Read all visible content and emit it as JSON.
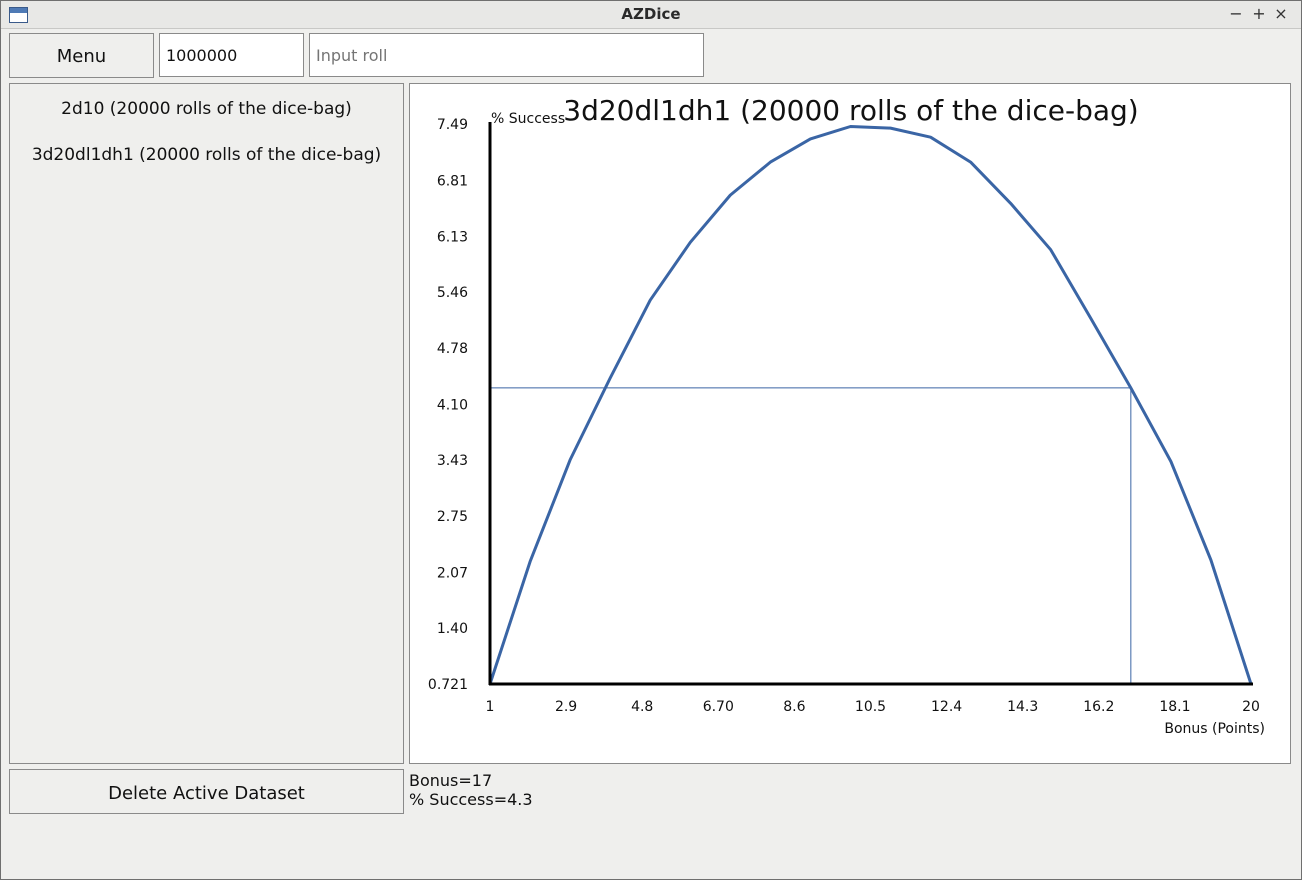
{
  "window": {
    "title": "AZDice",
    "controls": {
      "minimize": "−",
      "maximize": "+",
      "close": "×"
    }
  },
  "toolbar": {
    "menu_label": "Menu",
    "roll_count_value": "1000000",
    "roll_input_placeholder": "Input roll"
  },
  "datasets": [
    {
      "label": "2d10 (20000 rolls of the dice-bag)"
    },
    {
      "label": "3d20dl1dh1 (20000 rolls of the dice-bag)"
    }
  ],
  "actions": {
    "delete_label": "Delete Active Dataset"
  },
  "readout": {
    "bonus": "Bonus=17",
    "success": "% Success=4.3"
  },
  "chart_data": {
    "type": "line",
    "title": "3d20dl1dh1 (20000 rolls of the dice-bag)",
    "xlabel": "Bonus (Points)",
    "ylabel": "% Success",
    "xlim": [
      1,
      20
    ],
    "ylim": [
      0.721,
      7.49
    ],
    "x_ticks": [
      1,
      2.9,
      4.8,
      6.7,
      8.6,
      10.5,
      12.4,
      14.3,
      16.2,
      18.1,
      20
    ],
    "x_tick_labels": [
      "1",
      "2.9",
      "4.8",
      "6.70",
      "8.6",
      "10.5",
      "12.4",
      "14.3",
      "16.2",
      "18.1",
      "20"
    ],
    "y_ticks": [
      0.721,
      1.4,
      2.07,
      2.75,
      3.43,
      4.1,
      4.78,
      5.46,
      6.13,
      6.81,
      7.49
    ],
    "y_tick_labels": [
      "0.721",
      "1.40",
      "2.07",
      "2.75",
      "3.43",
      "4.10",
      "4.78",
      "5.46",
      "6.13",
      "6.81",
      "7.49"
    ],
    "grid": false,
    "line_color": "#3a65a5",
    "crosshair": {
      "x": 17,
      "y": 4.3,
      "color": "#3a65a5"
    },
    "series": [
      {
        "x": [
          1,
          2,
          3,
          4,
          5,
          6,
          7,
          8,
          9,
          10,
          11,
          12,
          13,
          14,
          15,
          16,
          17,
          18,
          19,
          20
        ],
        "values": [
          0.721,
          2.2,
          3.43,
          4.42,
          5.36,
          6.06,
          6.63,
          7.03,
          7.31,
          7.46,
          7.44,
          7.33,
          7.03,
          6.53,
          5.97,
          5.14,
          4.3,
          3.41,
          2.22,
          0.721
        ]
      }
    ]
  }
}
